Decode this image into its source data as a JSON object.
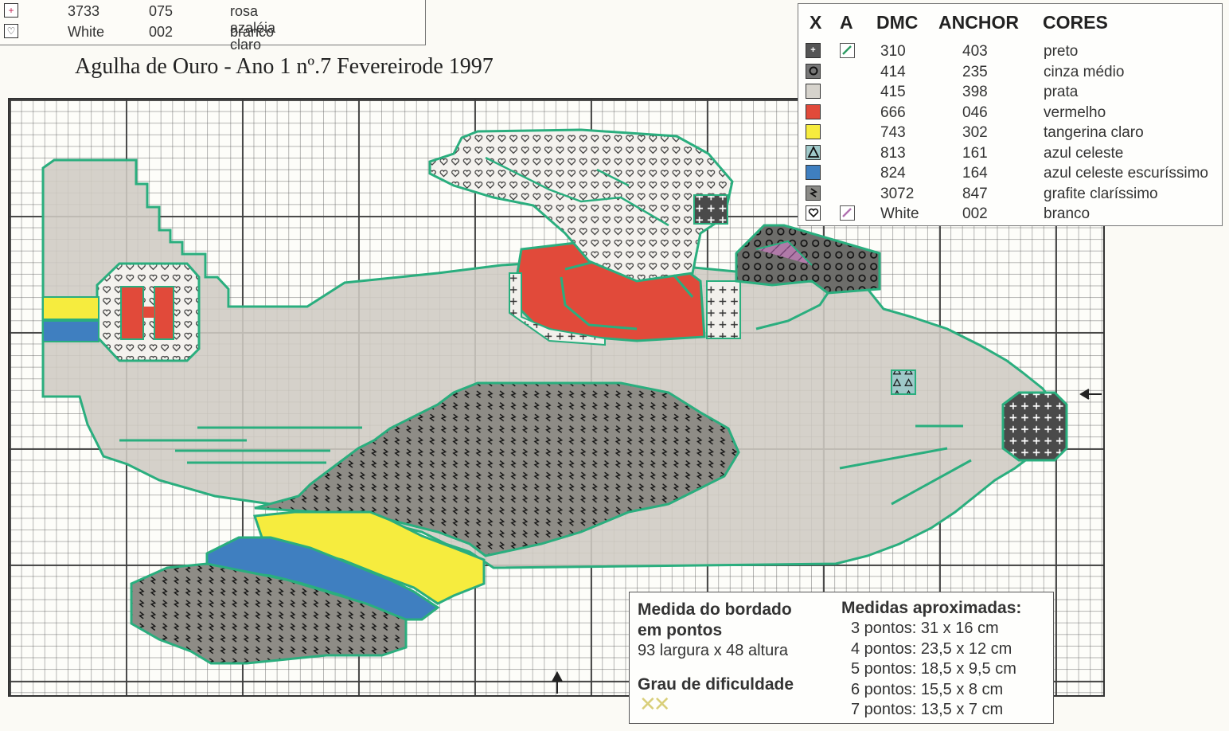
{
  "top_legend": {
    "rows": [
      {
        "symbol": "plus-icon",
        "symbol_color": "#c02050",
        "dmc": "3733",
        "anchor": "075",
        "color_name": "rosa azaléia claro"
      },
      {
        "symbol": "heart-icon",
        "symbol_color": "#222222",
        "dmc": "White",
        "anchor": "002",
        "color_name": "branco"
      }
    ]
  },
  "caption": "Agulha de Ouro - Ano 1 nº.7 Fevereirode 1997",
  "legend": {
    "headers": {
      "x": "X",
      "a": "A",
      "dmc": "DMC",
      "anchor": "ANCHOR",
      "cores": "CORES"
    },
    "rows": [
      {
        "symbol": "plus-icon",
        "fill": "#555555",
        "backstitch": "#2a9a60",
        "dmc": "310",
        "anchor": "403",
        "color_name": "preto"
      },
      {
        "symbol": "ring-icon",
        "fill": "#777777",
        "backstitch": "",
        "dmc": "414",
        "anchor": "235",
        "color_name": "cinza médio"
      },
      {
        "symbol": "blank-icon",
        "fill": "#d6d3cc",
        "backstitch": "",
        "dmc": "415",
        "anchor": "398",
        "color_name": "prata"
      },
      {
        "symbol": "blank-icon",
        "fill": "#e14a3a",
        "backstitch": "",
        "dmc": "666",
        "anchor": "046",
        "color_name": "vermelho"
      },
      {
        "symbol": "blank-icon",
        "fill": "#f6ec3e",
        "backstitch": "",
        "dmc": "743",
        "anchor": "302",
        "color_name": "tangerina claro"
      },
      {
        "symbol": "triangle-icon",
        "fill": "#9fc9c9",
        "backstitch": "",
        "dmc": "813",
        "anchor": "161",
        "color_name": "azul celeste"
      },
      {
        "symbol": "blank-icon",
        "fill": "#3f7fc0",
        "backstitch": "",
        "dmc": "824",
        "anchor": "164",
        "color_name": "azul celeste escuríssimo"
      },
      {
        "symbol": "lightning-icon",
        "fill": "#8a8a86",
        "backstitch": "",
        "dmc": "3072",
        "anchor": "847",
        "color_name": "grafite claríssimo"
      },
      {
        "symbol": "heart-icon",
        "fill": "#ffffff",
        "backstitch": "#b070b0",
        "dmc": "White",
        "anchor": "002",
        "color_name": "branco"
      }
    ]
  },
  "info": {
    "size_title_1": "Medida do bordado",
    "size_title_2": "em pontos",
    "size_value": "93 largura x 48 altura",
    "difficulty_title": "Grau de dificuldade",
    "difficulty_rating": 2,
    "measures_title": "Medidas aproximadas:",
    "measures": [
      "3 pontos: 31 x 16 cm",
      "4 pontos: 23,5 x 12 cm",
      "5 pontos: 18,5 x 9,5 cm",
      "6 pontos: 15,5 x 8 cm",
      "7 pontos: 13,5 x 7 cm"
    ]
  },
  "colors": {
    "outline": "#2aae7e",
    "gray": "#cfcbc3",
    "dark": "#4a4a4a",
    "red": "#e14a3a",
    "yellow": "#f6ec3e",
    "blue": "#3f7fc0",
    "graphite": "#8a8a86"
  }
}
